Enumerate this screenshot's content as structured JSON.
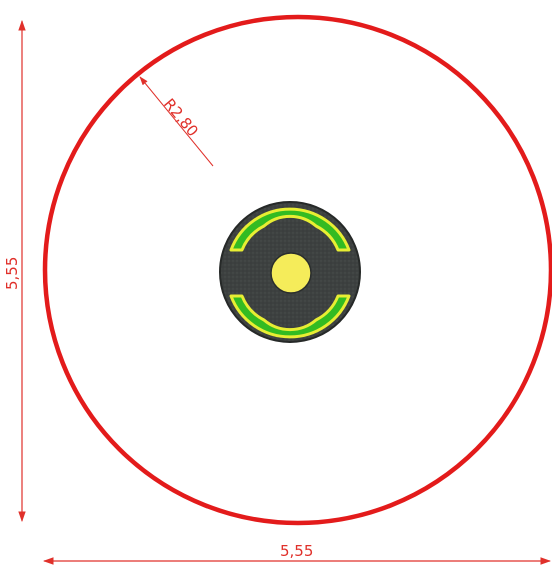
{
  "drawing": {
    "radius_label": "R2,80",
    "height_label": "5,55",
    "width_label": "5,55"
  },
  "colors": {
    "outer_circle": "#e31b1b",
    "dimension_line": "#e0302a",
    "equipment_body": "#3d4140",
    "equipment_rim": "#2a2d2c",
    "seat": "#33bb22",
    "seat_edge": "#e8ee33",
    "center_hub": "#f5ec5a"
  }
}
